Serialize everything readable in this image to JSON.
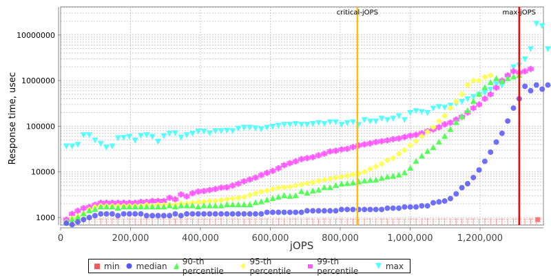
{
  "chart_data": {
    "type": "scatter",
    "title": "",
    "xlabel": "jOPS",
    "ylabel": "Response time, usec",
    "yscale": "log",
    "xlim": [
      0,
      1380000
    ],
    "ylim": [
      700,
      40000000
    ],
    "x_ticks": [
      "0",
      "200,000",
      "400,000",
      "600,000",
      "800,000",
      "1,000,000",
      "1,200,000"
    ],
    "y_ticks": [
      "1000",
      "10000",
      "100000",
      "1000000",
      "10000000"
    ],
    "grid": true,
    "legend_position": "bottom",
    "annotations": [
      {
        "label": "critical-jOPS",
        "x": 849000,
        "color": "#FFC000"
      },
      {
        "label": "max-jOPS",
        "x": 1312000,
        "color": "#FF0000"
      }
    ],
    "x_step": 16400,
    "series": [
      {
        "name": "min",
        "color": "#FF5555",
        "marker": "square",
        "note": "all values below axis floor (~<1000) except last point",
        "last_point": {
          "x": 1365000,
          "y": 900
        }
      },
      {
        "name": "median",
        "color": "#5555FF",
        "marker": "circle",
        "values": [
          750,
          700,
          800,
          900,
          1000,
          1100,
          1200,
          1200,
          1200,
          1100,
          1200,
          1200,
          1200,
          1200,
          1100,
          1100,
          1100,
          1100,
          1100,
          1200,
          1100,
          1200,
          1200,
          1200,
          1200,
          1200,
          1200,
          1200,
          1200,
          1200,
          1200,
          1200,
          1200,
          1200,
          1200,
          1300,
          1300,
          1300,
          1300,
          1300,
          1300,
          1300,
          1400,
          1400,
          1400,
          1400,
          1400,
          1400,
          1500,
          1500,
          1500,
          1500,
          1500,
          1500,
          1500,
          1500,
          1600,
          1600,
          1600,
          1700,
          1700,
          1700,
          1800,
          1800,
          2100,
          2200,
          2300,
          2600,
          3300,
          4500,
          5500,
          7500,
          11000,
          17000,
          27000,
          45000,
          70000,
          130000,
          250000,
          400000,
          750000,
          600000,
          800000,
          650000,
          800000
        ]
      },
      {
        "name": "90-th percentile",
        "color": "#55FF55",
        "marker": "triangle-up",
        "values": [
          800,
          900,
          1000,
          1200,
          1400,
          1500,
          1700,
          1700,
          1700,
          1600,
          1700,
          1700,
          1700,
          1700,
          1700,
          1700,
          1700,
          1700,
          1800,
          1700,
          1800,
          1800,
          1800,
          1700,
          1800,
          1800,
          1800,
          1800,
          1900,
          1900,
          1900,
          1900,
          1900,
          2100,
          2200,
          2400,
          2600,
          2800,
          3000,
          2900,
          3000,
          3700,
          3400,
          3800,
          4000,
          4500,
          4500,
          5000,
          5400,
          5500,
          5700,
          6000,
          6300,
          6500,
          6600,
          7200,
          7700,
          8000,
          8500,
          9500,
          12000,
          17000,
          22000,
          28000,
          34000,
          45000,
          60000,
          85000,
          120000,
          160000,
          220000,
          350000,
          500000,
          700000,
          900000,
          1100000,
          950000,
          1100000,
          1200000,
          1300000
        ]
      },
      {
        "name": "95-th percentile",
        "color": "#FFFF55",
        "marker": "diamond",
        "values": [
          800,
          950,
          1050,
          1200,
          1500,
          1700,
          1800,
          1800,
          1800,
          1800,
          1800,
          1800,
          1800,
          1800,
          1900,
          1800,
          1900,
          1900,
          1900,
          1900,
          2000,
          2000,
          2100,
          2200,
          2200,
          2300,
          2300,
          2400,
          2500,
          2600,
          2700,
          2800,
          3100,
          3400,
          3700,
          3900,
          4200,
          4500,
          4600,
          4700,
          5000,
          5300,
          5600,
          5900,
          6300,
          6700,
          7000,
          7500,
          7800,
          8200,
          8700,
          9200,
          10000,
          11500,
          13000,
          15000,
          18000,
          20000,
          25000,
          30000,
          38000,
          47000,
          60000,
          75000,
          95000,
          130000,
          170000,
          250000,
          350000,
          500000,
          800000,
          1000000,
          1000000,
          1200000,
          1300000
        ]
      },
      {
        "name": "99-th percentile",
        "color": "#FF55FF",
        "marker": "plus",
        "values": [
          900,
          1200,
          1400,
          1600,
          1700,
          1900,
          2100,
          2100,
          2100,
          2100,
          2100,
          2100,
          2100,
          2200,
          2200,
          2300,
          2300,
          2300,
          2700,
          2500,
          3200,
          2900,
          3400,
          3700,
          3800,
          4000,
          4200,
          4500,
          4600,
          5000,
          5500,
          6200,
          6800,
          7500,
          8500,
          9500,
          10500,
          12000,
          14000,
          15500,
          17000,
          19000,
          20000,
          21000,
          23000,
          25000,
          28000,
          29000,
          31000,
          32000,
          35000,
          38000,
          40000,
          42000,
          45000,
          47000,
          49000,
          52000,
          54000,
          58000,
          62000,
          65000,
          70000,
          78000,
          85000,
          95000,
          110000,
          120000,
          140000,
          160000,
          200000,
          250000,
          300000,
          400000,
          500000,
          700000,
          1000000,
          1300000,
          1600000,
          1500000,
          1600000,
          1800000
        ]
      },
      {
        "name": "max",
        "color": "#55FFFF",
        "marker": "triangle-down",
        "values": [
          37000,
          37000,
          40000,
          65000,
          65000,
          50000,
          42000,
          35000,
          37000,
          56000,
          57000,
          60000,
          50000,
          63000,
          65000,
          60000,
          47000,
          62000,
          70000,
          72000,
          58000,
          65000,
          70000,
          78000,
          78000,
          72000,
          80000,
          80000,
          82000,
          80000,
          90000,
          95000,
          95000,
          92000,
          88000,
          95000,
          100000,
          105000,
          110000,
          110000,
          115000,
          110000,
          110000,
          115000,
          120000,
          115000,
          125000,
          125000,
          110000,
          120000,
          125000,
          110000,
          140000,
          130000,
          130000,
          150000,
          140000,
          150000,
          170000,
          140000,
          200000,
          220000,
          210000,
          200000,
          250000,
          270000,
          260000,
          290000,
          320000,
          350000,
          400000,
          450000,
          500000,
          550000,
          650000,
          850000,
          800000,
          1200000,
          2000000,
          2200000,
          3000000,
          5000000,
          18000000,
          16000000,
          5000000,
          15000000
        ]
      }
    ]
  },
  "legend": {
    "items": [
      {
        "label": "min",
        "color": "#FF5555"
      },
      {
        "label": "median",
        "color": "#5555FF"
      },
      {
        "label": "90-th percentile",
        "color": "#55FF55"
      },
      {
        "label": "95-th percentile",
        "color": "#FFFF55"
      },
      {
        "label": "99-th percentile",
        "color": "#FF55FF"
      },
      {
        "label": "max",
        "color": "#55FFFF"
      }
    ]
  }
}
